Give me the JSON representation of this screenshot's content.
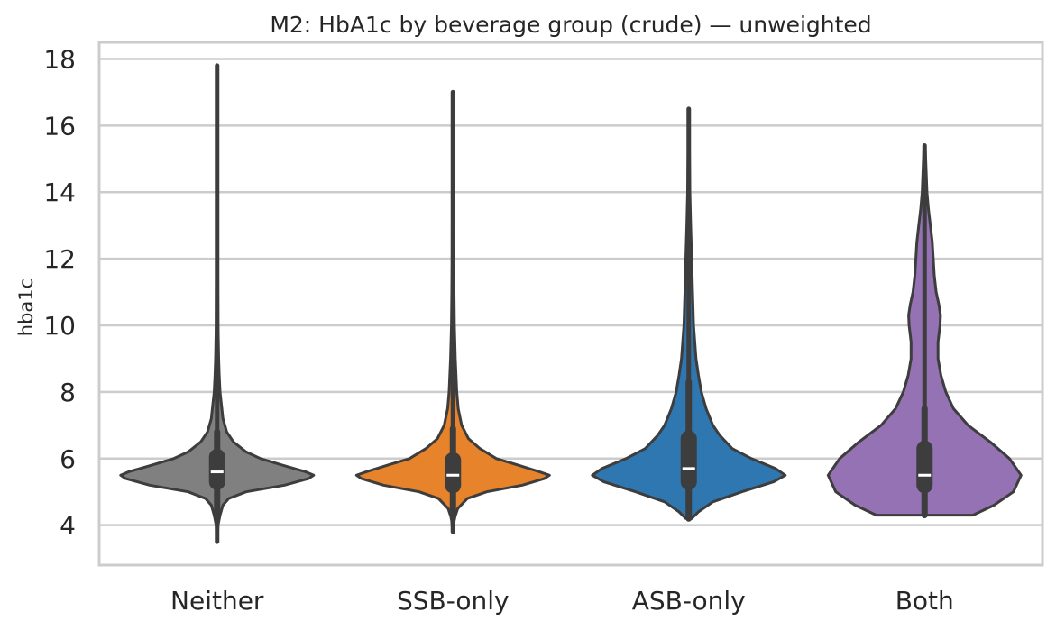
{
  "chart_data": {
    "type": "violin",
    "title": "M2: HbA1c by beverage group (crude) — unweighted",
    "xlabel": "",
    "ylabel": "hba1c",
    "ylim": [
      2.8,
      18.5
    ],
    "yticks": [
      "4",
      "6",
      "8",
      "10",
      "12",
      "14",
      "16",
      "18"
    ],
    "grid": "horizontal",
    "categories": [
      "Neither",
      "SSB-only",
      "ASB-only",
      "Both"
    ],
    "colors": [
      "#808080",
      "#e6832b",
      "#2e77b0",
      "#9472b4"
    ],
    "series": [
      {
        "min": 3.5,
        "max": 17.8,
        "median": 5.6,
        "q1": 5.3,
        "q3": 6.05,
        "whisker_low": 4.3,
        "whisker_high": 6.8,
        "density": [
          [
            3.5,
            0.002
          ],
          [
            4.0,
            0.01
          ],
          [
            4.3,
            0.03
          ],
          [
            4.6,
            0.06
          ],
          [
            4.8,
            0.12
          ],
          [
            5.0,
            0.3
          ],
          [
            5.2,
            0.7
          ],
          [
            5.4,
            0.95
          ],
          [
            5.5,
            1.0
          ],
          [
            5.6,
            0.92
          ],
          [
            5.8,
            0.68
          ],
          [
            6.0,
            0.45
          ],
          [
            6.2,
            0.3
          ],
          [
            6.5,
            0.17
          ],
          [
            6.8,
            0.1
          ],
          [
            7.2,
            0.06
          ],
          [
            7.6,
            0.045
          ],
          [
            8.0,
            0.03
          ],
          [
            8.5,
            0.022
          ],
          [
            9.0,
            0.016
          ],
          [
            10.0,
            0.01
          ],
          [
            12.0,
            0.006
          ],
          [
            14.0,
            0.005
          ],
          [
            16.0,
            0.004
          ],
          [
            17.8,
            0.002
          ]
        ]
      },
      {
        "min": 3.8,
        "max": 17.0,
        "median": 5.5,
        "q1": 5.2,
        "q3": 5.95,
        "whisker_low": 4.2,
        "whisker_high": 6.9,
        "density": [
          [
            3.8,
            0.002
          ],
          [
            4.2,
            0.015
          ],
          [
            4.5,
            0.05
          ],
          [
            4.8,
            0.15
          ],
          [
            5.0,
            0.35
          ],
          [
            5.2,
            0.72
          ],
          [
            5.4,
            0.95
          ],
          [
            5.5,
            1.0
          ],
          [
            5.6,
            0.9
          ],
          [
            5.8,
            0.68
          ],
          [
            6.0,
            0.45
          ],
          [
            6.3,
            0.28
          ],
          [
            6.6,
            0.16
          ],
          [
            7.0,
            0.09
          ],
          [
            7.5,
            0.055
          ],
          [
            8.0,
            0.04
          ],
          [
            9.0,
            0.025
          ],
          [
            10.0,
            0.015
          ],
          [
            11.0,
            0.012
          ],
          [
            12.0,
            0.008
          ],
          [
            14.0,
            0.006
          ],
          [
            16.0,
            0.004
          ],
          [
            17.0,
            0.002
          ]
        ]
      },
      {
        "min": 4.2,
        "max": 16.5,
        "median": 5.7,
        "q1": 5.3,
        "q3": 6.6,
        "whisker_low": 4.2,
        "whisker_high": 8.3,
        "density": [
          [
            4.2,
            0.03
          ],
          [
            4.4,
            0.1
          ],
          [
            4.7,
            0.25
          ],
          [
            5.0,
            0.55
          ],
          [
            5.3,
            0.88
          ],
          [
            5.5,
            1.0
          ],
          [
            5.7,
            0.9
          ],
          [
            6.0,
            0.65
          ],
          [
            6.3,
            0.45
          ],
          [
            6.7,
            0.32
          ],
          [
            7.0,
            0.25
          ],
          [
            7.5,
            0.18
          ],
          [
            8.0,
            0.13
          ],
          [
            8.5,
            0.1
          ],
          [
            9.0,
            0.075
          ],
          [
            10.0,
            0.05
          ],
          [
            11.0,
            0.04
          ],
          [
            12.0,
            0.03
          ],
          [
            13.0,
            0.02
          ],
          [
            14.0,
            0.012
          ],
          [
            15.0,
            0.008
          ],
          [
            16.5,
            0.003
          ]
        ]
      },
      {
        "min": 4.3,
        "max": 15.4,
        "median": 5.5,
        "q1": 5.2,
        "q3": 6.3,
        "whisker_low": 4.3,
        "whisker_high": 7.5,
        "density": [
          [
            4.3,
            0.5
          ],
          [
            4.6,
            0.72
          ],
          [
            5.0,
            0.92
          ],
          [
            5.5,
            1.0
          ],
          [
            6.0,
            0.88
          ],
          [
            6.5,
            0.68
          ],
          [
            7.0,
            0.45
          ],
          [
            7.5,
            0.3
          ],
          [
            8.0,
            0.22
          ],
          [
            8.5,
            0.17
          ],
          [
            9.0,
            0.14
          ],
          [
            9.5,
            0.14
          ],
          [
            10.0,
            0.16
          ],
          [
            10.3,
            0.165
          ],
          [
            10.6,
            0.15
          ],
          [
            11.0,
            0.12
          ],
          [
            11.5,
            0.1
          ],
          [
            12.0,
            0.09
          ],
          [
            12.5,
            0.08
          ],
          [
            13.0,
            0.06
          ],
          [
            13.5,
            0.04
          ],
          [
            14.0,
            0.025
          ],
          [
            15.0,
            0.012
          ],
          [
            15.4,
            0.005
          ]
        ]
      }
    ]
  }
}
